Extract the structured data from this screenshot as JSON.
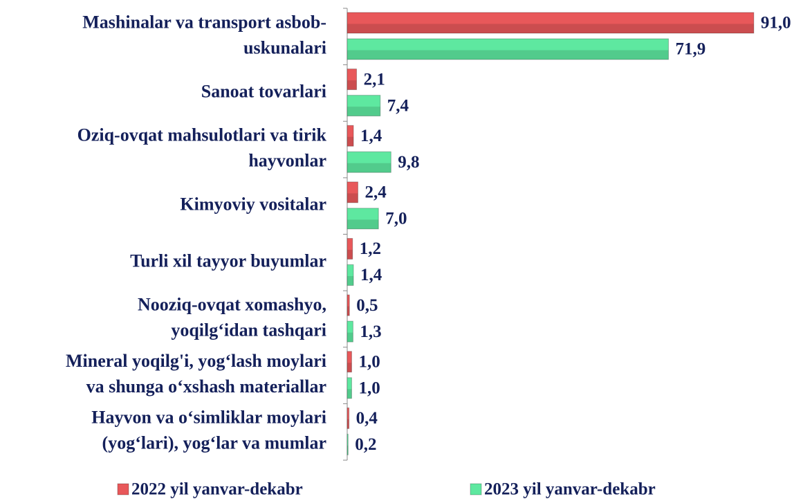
{
  "chart_data": {
    "type": "hbar",
    "categories": [
      "Mashinalar va transport asbob-\nuskunalari",
      "Sanoat tovarlari",
      "Oziq-ovqat mahsulotlari va tirik\nhayvonlar",
      "Kimyoviy vositalar",
      "Turli xil tayyor buyumlar",
      "Nooziq-ovqat xomashyo,\nyoqilg‘idan tashqari",
      "Mineral yoqilg'i, yog‘lash moylari\nva shunga o‘xshash materiallar",
      "Hayvon va o‘simliklar moylari\n(yog‘lari), yog‘lar va mumlar"
    ],
    "series": [
      {
        "name": "2022 yil yanvar-dekabr",
        "color": "#e8585a",
        "values": [
          91.0,
          2.1,
          1.4,
          2.4,
          1.2,
          0.5,
          1.0,
          0.4
        ],
        "value_labels": [
          "91,0",
          "2,1",
          "1,4",
          "2,4",
          "1,2",
          "0,5",
          "1,0",
          "0,4"
        ]
      },
      {
        "name": "2023 yil yanvar-dekabr",
        "color": "#5ee8a0",
        "values": [
          71.9,
          7.4,
          9.8,
          7.0,
          1.4,
          1.3,
          1.0,
          0.2
        ],
        "value_labels": [
          "71,9",
          "7,4",
          "9,8",
          "7,0",
          "1,4",
          "1,3",
          "1,0",
          "0,2"
        ]
      }
    ],
    "xlim": [
      0,
      100
    ],
    "legend": "bottom"
  }
}
